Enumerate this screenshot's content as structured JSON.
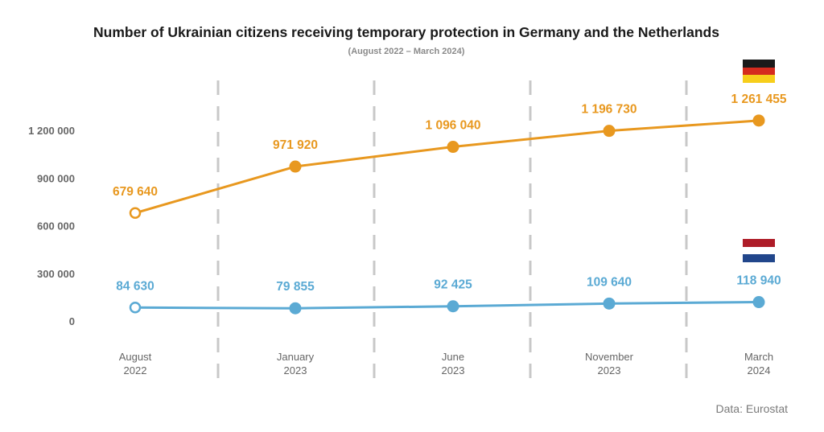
{
  "title": "Number of Ukrainian citizens receiving temporary protection in Germany and the Netherlands",
  "subtitle": "(August 2022 – March 2024)",
  "source": "Data: Eurostat",
  "colors": {
    "germany": "#E8981F",
    "netherlands": "#5BAAD4",
    "axis_text": "#666666",
    "grid": "#c8c8c8"
  },
  "flags": {
    "germany": [
      "#1a1a1a",
      "#D52B1E",
      "#F7CE1B"
    ],
    "netherlands": [
      "#AE1C28",
      "#FFFFFF",
      "#21468B"
    ]
  },
  "chart_data": {
    "type": "line",
    "x": [
      "August 2022",
      "January 2023",
      "June 2023",
      "November 2023",
      "March 2024"
    ],
    "x_tick_labels": [
      [
        "August",
        "2022"
      ],
      [
        "January",
        "2023"
      ],
      [
        "June",
        "2023"
      ],
      [
        "November",
        "2023"
      ],
      [
        "March",
        "2024"
      ]
    ],
    "y_ticks": [
      0,
      300000,
      600000,
      900000,
      1200000
    ],
    "y_tick_labels": [
      "0",
      "300 000",
      "600 000",
      "900 000",
      "1 200 000"
    ],
    "ylim": [
      0,
      1350000
    ],
    "series": [
      {
        "key": "germany",
        "values": [
          679640,
          971920,
          1096040,
          1196730,
          1261455
        ],
        "labels": [
          "679 640",
          "971 920",
          "1 096 040",
          "1 196 730",
          "1 261 455"
        ]
      },
      {
        "key": "netherlands",
        "values": [
          84630,
          79855,
          92425,
          109640,
          118940
        ],
        "labels": [
          "84 630",
          "79 855",
          "92 425",
          "109 640",
          "118 940"
        ]
      }
    ],
    "first_point_hollow": true,
    "grid": "vertical-dashed",
    "legend": "flags-right"
  }
}
